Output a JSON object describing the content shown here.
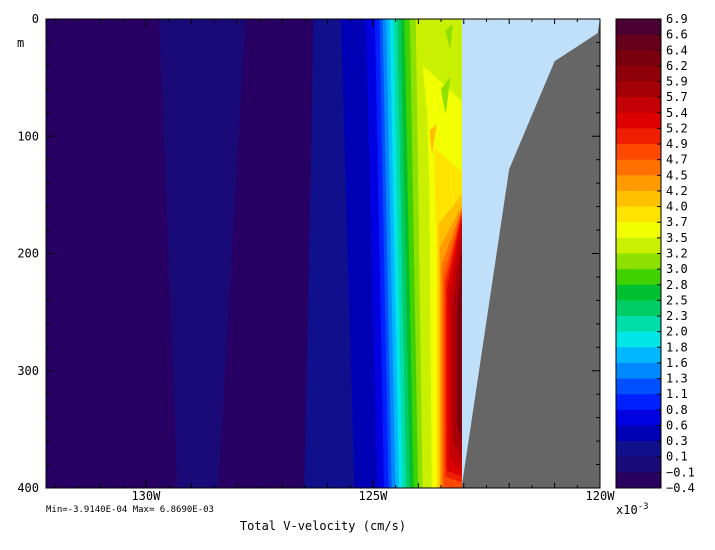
{
  "chart_data": {
    "type": "heatmap",
    "xlabel": "Total V-velocity (cm/s)",
    "ylabel": "m",
    "x_ticks": [
      "130W",
      "125W",
      "120W"
    ],
    "x_tick_values": [
      -130,
      -125,
      -120
    ],
    "xlim": [
      -132.2,
      -120
    ],
    "y_ticks": [
      "0",
      "100",
      "200",
      "300",
      "400"
    ],
    "y_tick_values": [
      0,
      100,
      200,
      300,
      400
    ],
    "ylim": [
      0,
      400
    ],
    "y_inverted": true,
    "stats_text": "Min=-3.9140E-04  Max= 6.8690E-03",
    "min_value": -0.0003914,
    "max_value": 0.006869,
    "colorbar": {
      "multiplier_text": "x10",
      "multiplier_exp": "-3",
      "labels": [
        "6.9",
        "6.6",
        "6.4",
        "6.2",
        "5.9",
        "5.7",
        "5.4",
        "5.2",
        "4.9",
        "4.7",
        "4.5",
        "4.2",
        "4.0",
        "3.7",
        "3.5",
        "3.2",
        "3.0",
        "2.8",
        "2.5",
        "2.3",
        "2.0",
        "1.8",
        "1.6",
        "1.3",
        "1.1",
        "0.8",
        "0.6",
        "0.3",
        "0.1",
        "−0.1",
        "−0.4"
      ],
      "colors": [
        "#4a0032",
        "#66001a",
        "#7a0010",
        "#8e000a",
        "#a50008",
        "#c20005",
        "#dc0000",
        "#f01e00",
        "#ff4800",
        "#ff7000",
        "#ff9a00",
        "#ffc000",
        "#ffe400",
        "#f2ff00",
        "#c8f000",
        "#8ee000",
        "#3fd200",
        "#00c030",
        "#00cc66",
        "#00ddaa",
        "#00e6e6",
        "#00b8ff",
        "#0088ff",
        "#0050ff",
        "#0020ff",
        "#0000e0",
        "#0000b4",
        "#10108c",
        "#1a0a78",
        "#2a0060"
      ]
    },
    "missing_color": "#bfe0f8",
    "land_color": "#666666",
    "land_boundary": [
      {
        "lon": -123.05,
        "depth": 400
      },
      {
        "lon": -122.0,
        "depth": 128
      },
      {
        "lon": -121.0,
        "depth": 36
      },
      {
        "lon": -120.05,
        "depth": 12
      }
    ],
    "data_edge_lon": -123.05,
    "bands": [
      {
        "color": "#280064",
        "points": [
          [
            -132.2,
            0
          ],
          [
            -129.7,
            0
          ],
          [
            -129.3,
            400
          ],
          [
            -132.2,
            400
          ]
        ]
      },
      {
        "color": "#1a0a78",
        "points": [
          [
            -129.7,
            0
          ],
          [
            -127.8,
            0
          ],
          [
            -128.4,
            400
          ],
          [
            -129.3,
            400
          ]
        ]
      },
      {
        "color": "#280064",
        "points": [
          [
            -127.8,
            0
          ],
          [
            -126.3,
            0
          ],
          [
            -126.5,
            400
          ],
          [
            -128.4,
            400
          ]
        ]
      },
      {
        "color": "#10108c",
        "points": [
          [
            -126.3,
            0
          ],
          [
            -125.7,
            0
          ],
          [
            -125.4,
            400
          ],
          [
            -126.5,
            400
          ]
        ]
      },
      {
        "color": "#0000b4",
        "points": [
          [
            -125.7,
            0
          ],
          [
            -125.15,
            0
          ],
          [
            -124.9,
            400
          ],
          [
            -125.4,
            400
          ]
        ]
      },
      {
        "color": "#0000e0",
        "points": [
          [
            -125.15,
            0
          ],
          [
            -124.95,
            0
          ],
          [
            -124.75,
            400
          ],
          [
            -124.9,
            400
          ]
        ]
      },
      {
        "color": "#0020ff",
        "points": [
          [
            -124.95,
            0
          ],
          [
            -124.85,
            0
          ],
          [
            -124.65,
            400
          ],
          [
            -124.75,
            400
          ]
        ]
      },
      {
        "color": "#0050ff",
        "points": [
          [
            -124.85,
            0
          ],
          [
            -124.78,
            0
          ],
          [
            -124.58,
            400
          ],
          [
            -124.65,
            400
          ]
        ]
      },
      {
        "color": "#0088ff",
        "points": [
          [
            -124.78,
            0
          ],
          [
            -124.7,
            0
          ],
          [
            -124.5,
            400
          ],
          [
            -124.58,
            400
          ]
        ]
      },
      {
        "color": "#00b8ff",
        "points": [
          [
            -124.7,
            0
          ],
          [
            -124.62,
            0
          ],
          [
            -124.42,
            400
          ],
          [
            -124.5,
            400
          ]
        ]
      },
      {
        "color": "#00e6e6",
        "points": [
          [
            -124.62,
            0
          ],
          [
            -124.54,
            0
          ],
          [
            -124.34,
            400
          ],
          [
            -124.42,
            400
          ]
        ]
      },
      {
        "color": "#00ddaa",
        "points": [
          [
            -124.54,
            0
          ],
          [
            -124.46,
            0
          ],
          [
            -124.26,
            400
          ],
          [
            -124.34,
            400
          ]
        ]
      },
      {
        "color": "#00cc66",
        "points": [
          [
            -124.46,
            0
          ],
          [
            -124.38,
            0
          ],
          [
            -124.18,
            400
          ],
          [
            -124.26,
            400
          ]
        ]
      },
      {
        "color": "#00c030",
        "points": [
          [
            -124.38,
            0
          ],
          [
            -124.3,
            0
          ],
          [
            -124.1,
            400
          ],
          [
            -124.18,
            400
          ]
        ]
      },
      {
        "color": "#3fd200",
        "points": [
          [
            -124.3,
            0
          ],
          [
            -124.18,
            0
          ],
          [
            -124.0,
            400
          ],
          [
            -124.1,
            400
          ]
        ]
      },
      {
        "color": "#8ee000",
        "points": [
          [
            -124.18,
            0
          ],
          [
            -124.05,
            0
          ],
          [
            -123.9,
            400
          ],
          [
            -124.0,
            400
          ]
        ]
      },
      {
        "color": "#c8f000",
        "points": [
          [
            -124.05,
            0
          ],
          [
            -123.05,
            0
          ],
          [
            -123.05,
            400
          ],
          [
            -123.9,
            400
          ]
        ]
      }
    ],
    "blobs": [
      {
        "color": "#f2ff00",
        "points": [
          [
            -123.9,
            40
          ],
          [
            -123.05,
            70
          ],
          [
            -123.05,
            400
          ],
          [
            -123.7,
            400
          ],
          [
            -123.75,
            150
          ],
          [
            -123.8,
            80
          ]
        ]
      },
      {
        "color": "#ffe400",
        "points": [
          [
            -123.65,
            110
          ],
          [
            -123.05,
            130
          ],
          [
            -123.05,
            400
          ],
          [
            -123.6,
            400
          ],
          [
            -123.6,
            200
          ]
        ]
      },
      {
        "color": "#ffc000",
        "points": [
          [
            -123.55,
            175
          ],
          [
            -123.05,
            150
          ],
          [
            -123.05,
            400
          ],
          [
            -123.55,
            400
          ]
        ]
      },
      {
        "color": "#ff9a00",
        "points": [
          [
            -123.52,
            195
          ],
          [
            -123.05,
            160
          ],
          [
            -123.05,
            400
          ],
          [
            -123.52,
            400
          ]
        ]
      },
      {
        "color": "#ff7000",
        "points": [
          [
            -123.48,
            210
          ],
          [
            -123.05,
            163
          ],
          [
            -123.05,
            400
          ],
          [
            -123.48,
            400
          ]
        ]
      },
      {
        "color": "#ff4800",
        "points": [
          [
            -123.44,
            220
          ],
          [
            -123.05,
            165
          ],
          [
            -123.05,
            400
          ],
          [
            -123.44,
            400
          ]
        ]
      },
      {
        "color": "#f01e00",
        "points": [
          [
            -123.4,
            225
          ],
          [
            -123.05,
            167
          ],
          [
            -123.05,
            395
          ],
          [
            -123.4,
            390
          ]
        ]
      },
      {
        "color": "#dc0000",
        "points": [
          [
            -123.36,
            230
          ],
          [
            -123.05,
            170
          ],
          [
            -123.05,
            390
          ],
          [
            -123.36,
            385
          ]
        ]
      },
      {
        "color": "#c20005",
        "points": [
          [
            -123.3,
            235
          ],
          [
            -123.05,
            175
          ],
          [
            -123.05,
            385
          ],
          [
            -123.3,
            375
          ]
        ]
      },
      {
        "color": "#a50008",
        "points": [
          [
            -123.22,
            240
          ],
          [
            -123.05,
            185
          ],
          [
            -123.05,
            375
          ],
          [
            -123.22,
            360
          ]
        ]
      },
      {
        "color": "#7a0010",
        "points": [
          [
            -123.14,
            250
          ],
          [
            -123.05,
            200
          ],
          [
            -123.05,
            360
          ],
          [
            -123.14,
            345
          ]
        ]
      },
      {
        "color": "#8ee000",
        "points": [
          [
            -123.5,
            60
          ],
          [
            -123.3,
            50
          ],
          [
            -123.4,
            80
          ]
        ]
      },
      {
        "color": "#8ee000",
        "points": [
          [
            -123.4,
            10
          ],
          [
            -123.25,
            5
          ],
          [
            -123.3,
            25
          ]
        ]
      },
      {
        "color": "#ffc000",
        "points": [
          [
            -123.75,
            95
          ],
          [
            -123.6,
            90
          ],
          [
            -123.7,
            115
          ]
        ]
      }
    ]
  }
}
